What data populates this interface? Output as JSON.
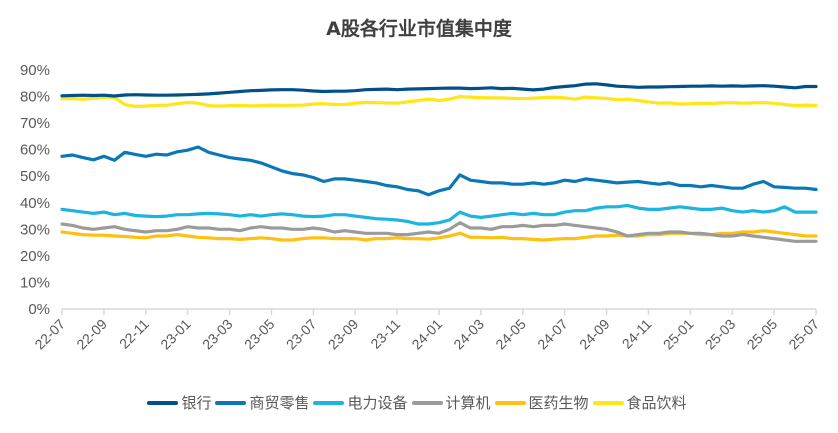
{
  "chart_data": {
    "type": "line",
    "title": "A股各行业市值集中度",
    "xlabel": "",
    "ylabel": "",
    "ylim": [
      0,
      90
    ],
    "y_ticks": [
      "0%",
      "10%",
      "20%",
      "30%",
      "40%",
      "50%",
      "60%",
      "70%",
      "80%",
      "90%"
    ],
    "y_tick_values": [
      0,
      10,
      20,
      30,
      40,
      50,
      60,
      70,
      80,
      90
    ],
    "x_ticks": [
      "22-07",
      "22-09",
      "22-11",
      "23-01",
      "23-03",
      "23-05",
      "23-07",
      "23-09",
      "23-11",
      "24-01",
      "24-03",
      "24-05",
      "24-07",
      "24-09",
      "24-11",
      "25-01",
      "25-03",
      "25-05",
      "25-07"
    ],
    "x_tick_months": [
      0,
      2,
      4,
      6,
      8,
      10,
      12,
      14,
      16,
      18,
      20,
      22,
      24,
      26,
      28,
      30,
      32,
      34,
      36
    ],
    "x_months_range": [
      0,
      36
    ],
    "grid": false,
    "legend_position": "bottom",
    "x_step_months": 0.5,
    "series": [
      {
        "name": "银行",
        "color": "#00508C",
        "values": [
          80.3,
          80.4,
          80.5,
          80.4,
          80.5,
          80.2,
          80.6,
          80.7,
          80.6,
          80.5,
          80.5,
          80.6,
          80.7,
          80.8,
          81.0,
          81.3,
          81.6,
          81.9,
          82.2,
          82.3,
          82.5,
          82.6,
          82.6,
          82.4,
          82.1,
          81.9,
          82.0,
          82.0,
          82.2,
          82.6,
          82.7,
          82.8,
          82.6,
          82.8,
          82.9,
          83.0,
          83.1,
          83.2,
          83.2,
          83.0,
          83.1,
          83.3,
          83.0,
          83.1,
          82.8,
          82.5,
          82.8,
          83.4,
          83.8,
          84.1,
          84.7,
          84.8,
          84.4,
          83.9,
          83.7,
          83.5,
          83.6,
          83.6,
          83.7,
          83.8,
          83.9,
          83.9,
          84.0,
          83.9,
          84.0,
          83.9,
          84.0,
          84.1,
          83.9,
          83.6,
          83.3,
          83.8,
          83.8
        ]
      },
      {
        "name": "商贸零售",
        "color": "#0A78B7",
        "values": [
          57.5,
          58.0,
          57.0,
          56.2,
          57.5,
          56.0,
          59.0,
          58.2,
          57.5,
          58.3,
          58.0,
          59.2,
          59.8,
          61.0,
          59.0,
          58.0,
          57.0,
          56.5,
          56.0,
          55.0,
          53.5,
          52.0,
          51.0,
          50.5,
          49.5,
          48.0,
          49.0,
          49.0,
          48.5,
          48.0,
          47.5,
          46.5,
          46.0,
          45.0,
          44.5,
          43.0,
          44.5,
          45.5,
          50.5,
          48.5,
          48.0,
          47.5,
          47.5,
          47.0,
          47.0,
          47.5,
          47.0,
          47.5,
          48.5,
          48.0,
          49.0,
          48.5,
          48.0,
          47.5,
          47.8,
          48.0,
          47.5,
          47.0,
          47.5,
          46.5,
          46.5,
          46.0,
          46.5,
          46.0,
          45.5,
          45.5,
          47.0,
          48.0,
          46.0,
          45.8,
          45.5,
          45.5,
          45.0
        ]
      },
      {
        "name": "电力设备",
        "color": "#1EB4E0",
        "values": [
          37.5,
          37.0,
          36.5,
          36.0,
          36.5,
          35.5,
          36.0,
          35.2,
          35.0,
          34.8,
          35.0,
          35.5,
          35.5,
          35.8,
          36.0,
          35.8,
          35.5,
          35.0,
          35.5,
          35.0,
          35.5,
          35.8,
          35.5,
          35.0,
          34.8,
          35.0,
          35.5,
          35.5,
          35.0,
          34.5,
          34.0,
          33.8,
          33.5,
          33.0,
          32.0,
          32.0,
          32.5,
          33.5,
          36.5,
          35.0,
          34.5,
          35.0,
          35.5,
          36.0,
          35.5,
          36.0,
          35.5,
          35.5,
          36.5,
          37.0,
          37.0,
          38.0,
          38.5,
          38.5,
          39.0,
          38.0,
          37.5,
          37.5,
          38.0,
          38.5,
          38.0,
          37.5,
          37.5,
          38.0,
          37.0,
          36.5,
          37.0,
          36.5,
          37.0,
          38.5,
          36.5,
          36.5,
          36.5
        ]
      },
      {
        "name": "计算机",
        "color": "#9B9B9B",
        "values": [
          32.0,
          31.5,
          30.5,
          30.0,
          30.5,
          31.0,
          30.0,
          29.5,
          29.0,
          29.5,
          29.5,
          30.0,
          31.0,
          30.5,
          30.5,
          30.0,
          30.0,
          29.5,
          30.5,
          31.0,
          30.5,
          30.5,
          30.0,
          30.0,
          30.5,
          30.0,
          29.0,
          29.5,
          29.0,
          28.5,
          28.5,
          28.5,
          28.0,
          28.0,
          28.5,
          29.0,
          28.5,
          30.0,
          32.5,
          30.5,
          30.5,
          30.0,
          31.0,
          31.0,
          31.5,
          31.0,
          31.5,
          31.5,
          32.0,
          31.5,
          31.0,
          30.5,
          30.0,
          29.0,
          27.5,
          28.0,
          28.5,
          28.5,
          29.0,
          29.0,
          28.5,
          28.5,
          28.0,
          27.5,
          27.5,
          28.0,
          27.5,
          27.0,
          26.5,
          26.0,
          25.5,
          25.5,
          25.5
        ]
      },
      {
        "name": "医药生物",
        "color": "#FFC010",
        "values": [
          29.0,
          28.5,
          28.0,
          27.8,
          27.8,
          27.5,
          27.3,
          27.0,
          26.8,
          27.5,
          27.5,
          28.0,
          27.5,
          27.0,
          26.8,
          26.5,
          26.5,
          26.2,
          26.5,
          26.8,
          26.5,
          26.0,
          26.0,
          26.5,
          26.8,
          26.8,
          26.5,
          26.5,
          26.5,
          26.0,
          26.5,
          26.5,
          26.8,
          26.5,
          26.5,
          26.3,
          26.8,
          27.5,
          28.5,
          27.0,
          27.0,
          26.8,
          27.0,
          26.5,
          26.5,
          26.2,
          26.0,
          26.3,
          26.5,
          26.5,
          27.0,
          27.5,
          27.5,
          27.8,
          27.5,
          27.5,
          28.0,
          28.0,
          28.5,
          28.5,
          28.5,
          28.0,
          28.0,
          28.5,
          28.5,
          29.0,
          29.0,
          29.5,
          29.0,
          28.5,
          28.0,
          27.5,
          27.5
        ]
      },
      {
        "name": "食品饮料",
        "color": "#FFE619",
        "values": [
          79.2,
          79.2,
          79.0,
          79.3,
          79.7,
          79.6,
          77.0,
          76.3,
          76.4,
          76.7,
          76.7,
          77.3,
          77.8,
          77.5,
          76.6,
          76.4,
          76.6,
          76.7,
          76.5,
          76.6,
          76.8,
          76.7,
          76.7,
          76.8,
          77.2,
          77.3,
          77.0,
          77.0,
          77.5,
          77.8,
          77.7,
          77.6,
          77.5,
          78.0,
          78.5,
          79.0,
          78.5,
          79.0,
          80.0,
          79.8,
          79.6,
          79.5,
          79.5,
          79.3,
          79.2,
          79.4,
          79.6,
          79.8,
          79.5,
          79.0,
          79.8,
          79.5,
          79.3,
          78.8,
          79.0,
          78.5,
          78.0,
          77.5,
          77.6,
          77.2,
          77.3,
          77.5,
          77.4,
          77.6,
          77.7,
          77.5,
          77.6,
          77.7,
          77.5,
          77.0,
          76.6,
          76.8,
          76.6
        ]
      }
    ]
  }
}
